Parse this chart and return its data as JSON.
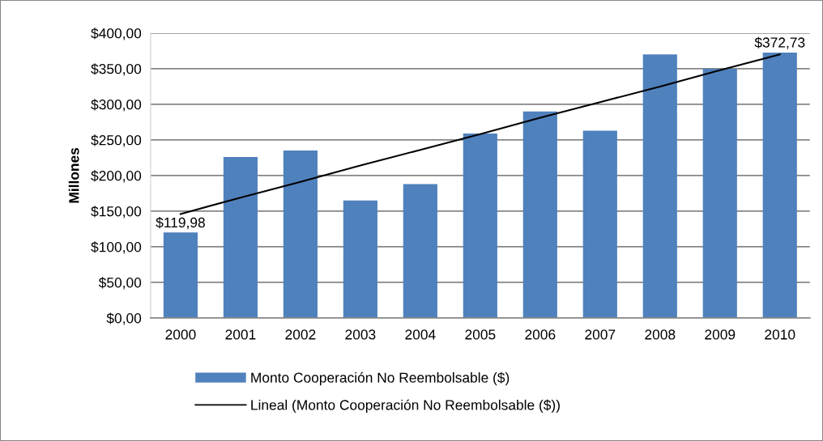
{
  "chart_data": {
    "type": "bar",
    "categories": [
      "2000",
      "2001",
      "2002",
      "2003",
      "2004",
      "2005",
      "2006",
      "2007",
      "2008",
      "2009",
      "2010"
    ],
    "ylabel": "Millones",
    "ylim": [
      0,
      400
    ],
    "yticks": [
      {
        "value": 0,
        "label": "$0,00"
      },
      {
        "value": 50,
        "label": "$50,00"
      },
      {
        "value": 100,
        "label": "$100,00"
      },
      {
        "value": 150,
        "label": "$150,00"
      },
      {
        "value": 200,
        "label": "$200,00"
      },
      {
        "value": 250,
        "label": "$250,00"
      },
      {
        "value": 300,
        "label": "$300,00"
      },
      {
        "value": 350,
        "label": "$350,00"
      },
      {
        "value": 400,
        "label": "$400,00"
      }
    ],
    "grid": "y",
    "legend": "bottom",
    "series": [
      {
        "name": "Monto Cooperación No Reembolsable ($)",
        "color": "#4f81bd",
        "values": [
          119.98,
          226,
          235,
          165,
          188,
          259,
          290,
          263,
          370,
          350,
          372.73
        ],
        "value_labels": [
          "$119,98",
          null,
          null,
          null,
          null,
          null,
          null,
          null,
          null,
          null,
          "$372,73"
        ]
      },
      {
        "name": "Lineal (Monto Cooperación No Reembolsable ($))",
        "type": "line",
        "color": "#000000",
        "values": [
          146,
          169,
          191,
          214,
          236,
          258,
          281,
          303,
          325,
          348,
          370
        ]
      }
    ]
  }
}
